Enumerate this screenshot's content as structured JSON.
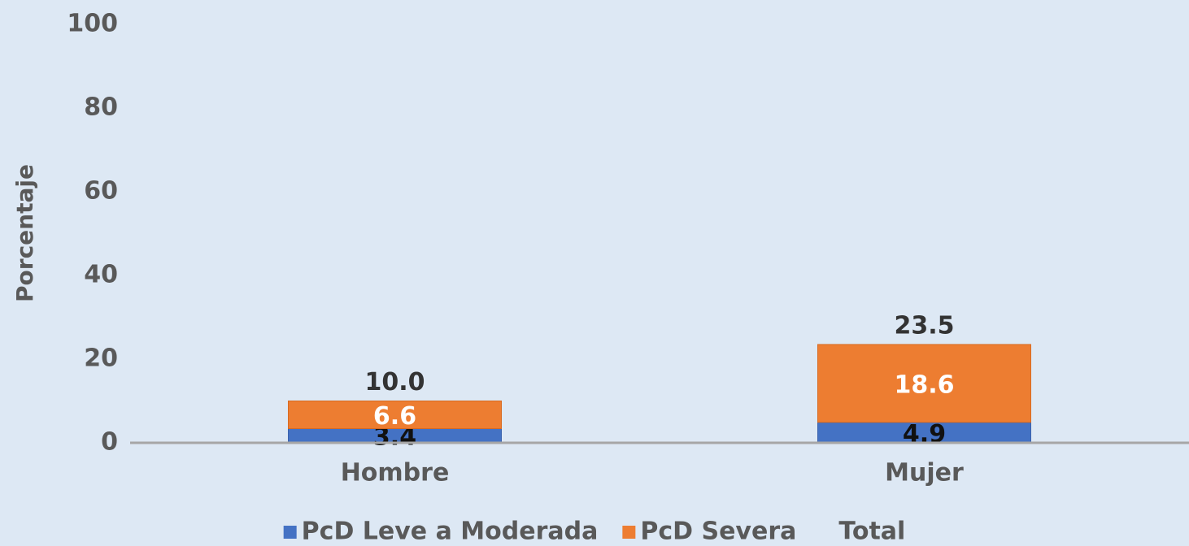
{
  "chart_data": {
    "type": "stacked_bar",
    "y_label": "Porcentaje",
    "categories": [
      "Hombre",
      "Mujer"
    ],
    "series": [
      {
        "name": "PcD Leve a Moderada",
        "color": "#4472c4",
        "values": [
          3.4,
          4.9
        ]
      },
      {
        "name": "PcD Severa",
        "color": "#ed7d31",
        "values": [
          6.6,
          18.6
        ]
      },
      {
        "name": "Total",
        "values": [
          10,
          23.5
        ],
        "value_labels": [
          "10.0",
          "23.5"
        ]
      }
    ],
    "ylim": [
      0,
      100
    ],
    "yticks": [
      0,
      20,
      40,
      60,
      80,
      100
    ],
    "grid": false
  }
}
